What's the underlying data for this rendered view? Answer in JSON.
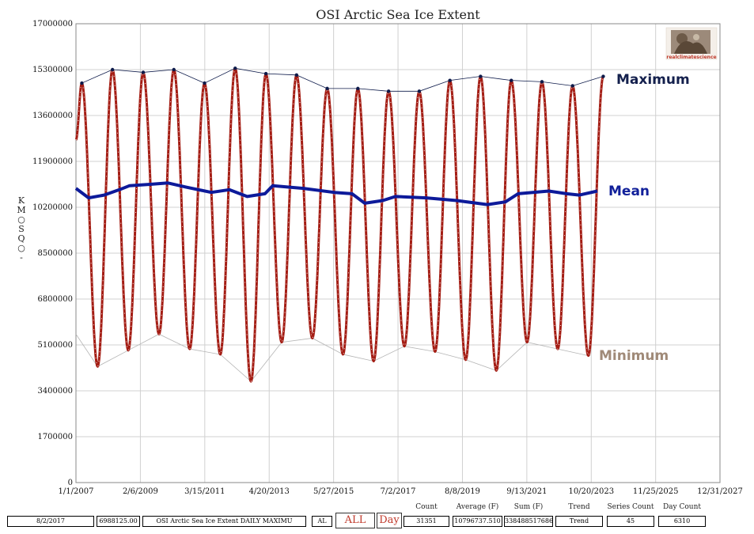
{
  "chart_data": {
    "type": "line",
    "title": "OSI Arctic Sea Ice Extent",
    "ylabel": "KM SQ",
    "ylabel_chars": [
      "K",
      "M",
      "○",
      "S",
      "Q",
      "○",
      "-"
    ],
    "ylim": [
      0,
      17000000
    ],
    "y_ticks": [
      "0",
      "1700000",
      "3400000",
      "5100000",
      "6800000",
      "8500000",
      "10200000",
      "11900000",
      "13600000",
      "15300000",
      "17000000"
    ],
    "xlim": [
      "2007-01-01",
      "2027-12-31"
    ],
    "x_ticks": [
      "1/1/2007",
      "2/6/2009",
      "3/15/2011",
      "4/20/2013",
      "5/27/2015",
      "7/2/2017",
      "8/8/2019",
      "9/13/2021",
      "10/20/2023",
      "11/25/2025",
      "12/31/2027"
    ],
    "grid": true,
    "years": [
      2007,
      2008,
      2009,
      2010,
      2011,
      2012,
      2013,
      2014,
      2015,
      2016,
      2017,
      2018,
      2019,
      2020,
      2021,
      2022,
      2023,
      2024
    ],
    "annual_maximum": [
      14800000,
      15300000,
      15200000,
      15300000,
      14800000,
      15350000,
      15150000,
      15100000,
      14600000,
      14600000,
      14500000,
      14500000,
      14900000,
      15050000,
      14900000,
      14850000,
      14700000,
      15050000
    ],
    "annual_minimum": [
      4300000,
      4900000,
      5500000,
      4950000,
      4750000,
      3750000,
      5200000,
      5350000,
      4750000,
      4500000,
      5050000,
      4850000,
      4550000,
      4150000,
      5200000,
      4950000,
      4700000
    ],
    "mean_series": [
      [
        "2007-01-01",
        10900000
      ],
      [
        "2007-06-01",
        10550000
      ],
      [
        "2007-12-01",
        10650000
      ],
      [
        "2008-06-01",
        10850000
      ],
      [
        "2008-10-01",
        11000000
      ],
      [
        "2009-06-01",
        11050000
      ],
      [
        "2010-01-01",
        11100000
      ],
      [
        "2010-08-01",
        10950000
      ],
      [
        "2011-06-01",
        10750000
      ],
      [
        "2012-01-01",
        10850000
      ],
      [
        "2012-08-01",
        10600000
      ],
      [
        "2013-03-01",
        10700000
      ],
      [
        "2013-06-01",
        11000000
      ],
      [
        "2014-06-01",
        10900000
      ],
      [
        "2015-06-01",
        10750000
      ],
      [
        "2016-01-01",
        10700000
      ],
      [
        "2016-06-01",
        10350000
      ],
      [
        "2017-01-01",
        10450000
      ],
      [
        "2017-06-01",
        10600000
      ],
      [
        "2018-06-01",
        10550000
      ],
      [
        "2019-06-01",
        10450000
      ],
      [
        "2020-06-01",
        10300000
      ],
      [
        "2021-01-01",
        10400000
      ],
      [
        "2021-06-01",
        10700000
      ],
      [
        "2022-06-01",
        10800000
      ],
      [
        "2023-01-01",
        10700000
      ],
      [
        "2023-06-01",
        10650000
      ],
      [
        "2024-01-01",
        10800000
      ]
    ],
    "series": [
      {
        "name": "Maximum",
        "color": "#0d1a4a",
        "label_color": "#14204d"
      },
      {
        "name": "Mean",
        "color": "#0d1a9a",
        "label_color": "#11209a"
      },
      {
        "name": "Minimum",
        "color": "#b5b5b5",
        "label_color": "#a08a78"
      },
      {
        "color": "#a41d14"
      }
    ]
  },
  "logo": {
    "text": "realclimatescience"
  },
  "footer": {
    "date": "8/2/2017",
    "value": "6988125.00",
    "series_title": "OSI Arctic Sea Ice Extent DAILY MAXIMU",
    "al": "AL",
    "btn_all": "ALL",
    "btn_day": "Day",
    "count_label": "Count",
    "count": "31351",
    "average_label": "Average (F)",
    "average": "10796737.510",
    "sum_label": "Sum (F)",
    "sum": "338488517686",
    "trend_label": "Trend",
    "trend": "Trend",
    "series_count_label": "Series Count",
    "series_count": "45",
    "day_count_label": "Day Count",
    "day_count": "6310"
  }
}
